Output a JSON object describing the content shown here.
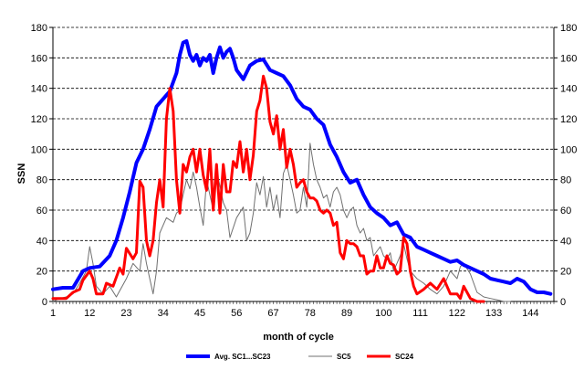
{
  "chart_data": {
    "type": "line",
    "xlabel": "month of cycle",
    "ylabel": "SSN",
    "xlim": [
      1,
      151
    ],
    "ylim": [
      0,
      180
    ],
    "x_ticks": [
      1,
      12,
      23,
      34,
      45,
      56,
      67,
      78,
      89,
      100,
      111,
      122,
      133,
      144
    ],
    "y_ticks": [
      0,
      20,
      40,
      60,
      80,
      100,
      120,
      140,
      160,
      180
    ],
    "y_tick_labels": [
      "0",
      "20",
      "40",
      "60",
      "80",
      "100",
      "120",
      "140",
      "160",
      "180"
    ],
    "grid": "horizontal dashed",
    "legend_position": "bottom",
    "series": [
      {
        "name": "Avg. SC1...SC23",
        "color": "#0000ff",
        "width": 4,
        "points": [
          [
            1,
            8
          ],
          [
            4,
            9
          ],
          [
            7,
            9
          ],
          [
            10,
            20
          ],
          [
            12,
            22
          ],
          [
            15,
            23
          ],
          [
            18,
            30
          ],
          [
            20,
            40
          ],
          [
            22,
            55
          ],
          [
            24,
            72
          ],
          [
            26,
            91
          ],
          [
            28,
            100
          ],
          [
            30,
            113
          ],
          [
            32,
            128
          ],
          [
            34,
            133
          ],
          [
            36,
            138
          ],
          [
            38,
            150
          ],
          [
            39,
            162
          ],
          [
            40,
            170
          ],
          [
            41,
            171
          ],
          [
            42,
            162
          ],
          [
            43,
            158
          ],
          [
            44,
            162
          ],
          [
            45,
            155
          ],
          [
            46,
            160
          ],
          [
            47,
            158
          ],
          [
            48,
            162
          ],
          [
            49,
            150
          ],
          [
            50,
            160
          ],
          [
            51,
            167
          ],
          [
            52,
            160
          ],
          [
            53,
            164
          ],
          [
            54,
            166
          ],
          [
            55,
            160
          ],
          [
            56,
            152
          ],
          [
            58,
            146
          ],
          [
            60,
            155
          ],
          [
            62,
            158
          ],
          [
            64,
            159
          ],
          [
            66,
            152
          ],
          [
            68,
            150
          ],
          [
            70,
            148
          ],
          [
            72,
            142
          ],
          [
            74,
            133
          ],
          [
            76,
            128
          ],
          [
            78,
            126
          ],
          [
            80,
            120
          ],
          [
            82,
            116
          ],
          [
            84,
            103
          ],
          [
            86,
            95
          ],
          [
            88,
            85
          ],
          [
            90,
            78
          ],
          [
            92,
            80
          ],
          [
            94,
            70
          ],
          [
            96,
            62
          ],
          [
            98,
            58
          ],
          [
            100,
            55
          ],
          [
            102,
            50
          ],
          [
            104,
            52
          ],
          [
            106,
            44
          ],
          [
            108,
            42
          ],
          [
            110,
            36
          ],
          [
            112,
            34
          ],
          [
            114,
            32
          ],
          [
            116,
            30
          ],
          [
            118,
            28
          ],
          [
            120,
            26
          ],
          [
            122,
            27
          ],
          [
            124,
            24
          ],
          [
            126,
            22
          ],
          [
            128,
            20
          ],
          [
            130,
            18
          ],
          [
            132,
            15
          ],
          [
            134,
            14
          ],
          [
            136,
            13
          ],
          [
            138,
            12
          ],
          [
            140,
            15
          ],
          [
            142,
            13
          ],
          [
            144,
            8
          ],
          [
            146,
            6
          ],
          [
            148,
            6
          ],
          [
            150,
            5
          ]
        ]
      },
      {
        "name": "SC5",
        "color": "#707070",
        "width": 1,
        "points": [
          [
            1,
            0
          ],
          [
            3,
            2
          ],
          [
            5,
            3
          ],
          [
            7,
            5
          ],
          [
            9,
            12
          ],
          [
            11,
            20
          ],
          [
            12,
            36
          ],
          [
            13,
            25
          ],
          [
            14,
            10
          ],
          [
            16,
            5
          ],
          [
            18,
            10
          ],
          [
            20,
            3
          ],
          [
            21,
            7
          ],
          [
            23,
            15
          ],
          [
            25,
            25
          ],
          [
            27,
            20
          ],
          [
            28,
            38
          ],
          [
            29,
            25
          ],
          [
            30,
            15
          ],
          [
            31,
            5
          ],
          [
            32,
            20
          ],
          [
            33,
            45
          ],
          [
            35,
            55
          ],
          [
            37,
            52
          ],
          [
            38,
            58
          ],
          [
            39,
            60
          ],
          [
            40,
            70
          ],
          [
            41,
            80
          ],
          [
            42,
            74
          ],
          [
            43,
            85
          ],
          [
            44,
            75
          ],
          [
            45,
            62
          ],
          [
            46,
            50
          ],
          [
            47,
            80
          ],
          [
            48,
            70
          ],
          [
            49,
            60
          ],
          [
            50,
            85
          ],
          [
            51,
            76
          ],
          [
            52,
            65
          ],
          [
            53,
            60
          ],
          [
            54,
            42
          ],
          [
            56,
            55
          ],
          [
            58,
            62
          ],
          [
            59,
            40
          ],
          [
            60,
            45
          ],
          [
            61,
            58
          ],
          [
            62,
            78
          ],
          [
            63,
            70
          ],
          [
            64,
            82
          ],
          [
            65,
            62
          ],
          [
            66,
            75
          ],
          [
            67,
            60
          ],
          [
            68,
            70
          ],
          [
            69,
            55
          ],
          [
            70,
            84
          ],
          [
            71,
            90
          ],
          [
            72,
            80
          ],
          [
            73,
            70
          ],
          [
            74,
            58
          ],
          [
            75,
            60
          ],
          [
            76,
            75
          ],
          [
            77,
            62
          ],
          [
            78,
            104
          ],
          [
            79,
            90
          ],
          [
            80,
            80
          ],
          [
            81,
            75
          ],
          [
            82,
            68
          ],
          [
            83,
            70
          ],
          [
            84,
            62
          ],
          [
            85,
            72
          ],
          [
            86,
            75
          ],
          [
            87,
            70
          ],
          [
            88,
            60
          ],
          [
            89,
            55
          ],
          [
            90,
            60
          ],
          [
            91,
            62
          ],
          [
            92,
            50
          ],
          [
            93,
            45
          ],
          [
            94,
            48
          ],
          [
            95,
            40
          ],
          [
            96,
            42
          ],
          [
            97,
            30
          ],
          [
            98,
            33
          ],
          [
            99,
            36
          ],
          [
            100,
            30
          ],
          [
            101,
            28
          ],
          [
            102,
            32
          ],
          [
            103,
            20
          ],
          [
            104,
            25
          ],
          [
            105,
            30
          ],
          [
            106,
            38
          ],
          [
            107,
            28
          ],
          [
            108,
            20
          ],
          [
            110,
            15
          ],
          [
            112,
            12
          ],
          [
            114,
            8
          ],
          [
            116,
            5
          ],
          [
            118,
            10
          ],
          [
            120,
            20
          ],
          [
            122,
            15
          ],
          [
            123,
            23
          ],
          [
            124,
            25
          ],
          [
            126,
            18
          ],
          [
            128,
            6
          ],
          [
            130,
            3
          ],
          [
            132,
            2
          ],
          [
            134,
            1
          ],
          [
            136,
            0
          ],
          [
            138,
            0
          ]
        ]
      },
      {
        "name": "SC24",
        "color": "#ff0000",
        "width": 3,
        "points": [
          [
            1,
            2
          ],
          [
            3,
            2
          ],
          [
            5,
            2
          ],
          [
            7,
            6
          ],
          [
            9,
            8
          ],
          [
            10,
            14
          ],
          [
            12,
            20
          ],
          [
            13,
            15
          ],
          [
            14,
            5
          ],
          [
            16,
            5
          ],
          [
            17,
            12
          ],
          [
            19,
            10
          ],
          [
            21,
            22
          ],
          [
            22,
            18
          ],
          [
            23,
            35
          ],
          [
            25,
            28
          ],
          [
            26,
            32
          ],
          [
            27,
            79
          ],
          [
            28,
            75
          ],
          [
            29,
            40
          ],
          [
            30,
            30
          ],
          [
            31,
            40
          ],
          [
            32,
            65
          ],
          [
            33,
            80
          ],
          [
            34,
            62
          ],
          [
            35,
            120
          ],
          [
            36,
            140
          ],
          [
            37,
            125
          ],
          [
            38,
            80
          ],
          [
            39,
            58
          ],
          [
            40,
            90
          ],
          [
            41,
            85
          ],
          [
            42,
            95
          ],
          [
            43,
            100
          ],
          [
            44,
            85
          ],
          [
            45,
            100
          ],
          [
            46,
            83
          ],
          [
            47,
            73
          ],
          [
            48,
            100
          ],
          [
            49,
            60
          ],
          [
            50,
            90
          ],
          [
            51,
            58
          ],
          [
            52,
            90
          ],
          [
            53,
            72
          ],
          [
            54,
            72
          ],
          [
            55,
            92
          ],
          [
            56,
            88
          ],
          [
            57,
            105
          ],
          [
            58,
            85
          ],
          [
            59,
            100
          ],
          [
            60,
            80
          ],
          [
            61,
            96
          ],
          [
            62,
            125
          ],
          [
            63,
            132
          ],
          [
            64,
            148
          ],
          [
            65,
            140
          ],
          [
            66,
            118
          ],
          [
            67,
            110
          ],
          [
            68,
            122
          ],
          [
            69,
            100
          ],
          [
            70,
            113
          ],
          [
            71,
            88
          ],
          [
            72,
            100
          ],
          [
            73,
            90
          ],
          [
            74,
            75
          ],
          [
            75,
            78
          ],
          [
            76,
            80
          ],
          [
            77,
            72
          ],
          [
            78,
            68
          ],
          [
            79,
            68
          ],
          [
            80,
            66
          ],
          [
            81,
            60
          ],
          [
            82,
            58
          ],
          [
            83,
            60
          ],
          [
            84,
            58
          ],
          [
            85,
            50
          ],
          [
            86,
            52
          ],
          [
            87,
            32
          ],
          [
            88,
            28
          ],
          [
            89,
            40
          ],
          [
            90,
            38
          ],
          [
            91,
            38
          ],
          [
            92,
            36
          ],
          [
            93,
            30
          ],
          [
            94,
            30
          ],
          [
            95,
            18
          ],
          [
            96,
            20
          ],
          [
            97,
            20
          ],
          [
            98,
            30
          ],
          [
            99,
            22
          ],
          [
            100,
            22
          ],
          [
            101,
            30
          ],
          [
            102,
            25
          ],
          [
            103,
            24
          ],
          [
            104,
            18
          ],
          [
            105,
            20
          ],
          [
            106,
            42
          ],
          [
            107,
            38
          ],
          [
            108,
            20
          ],
          [
            109,
            10
          ],
          [
            110,
            5
          ],
          [
            112,
            8
          ],
          [
            114,
            12
          ],
          [
            116,
            8
          ],
          [
            118,
            15
          ],
          [
            120,
            5
          ],
          [
            122,
            5
          ],
          [
            123,
            2
          ],
          [
            124,
            10
          ],
          [
            126,
            2
          ],
          [
            128,
            0
          ],
          [
            130,
            0
          ]
        ]
      }
    ]
  }
}
